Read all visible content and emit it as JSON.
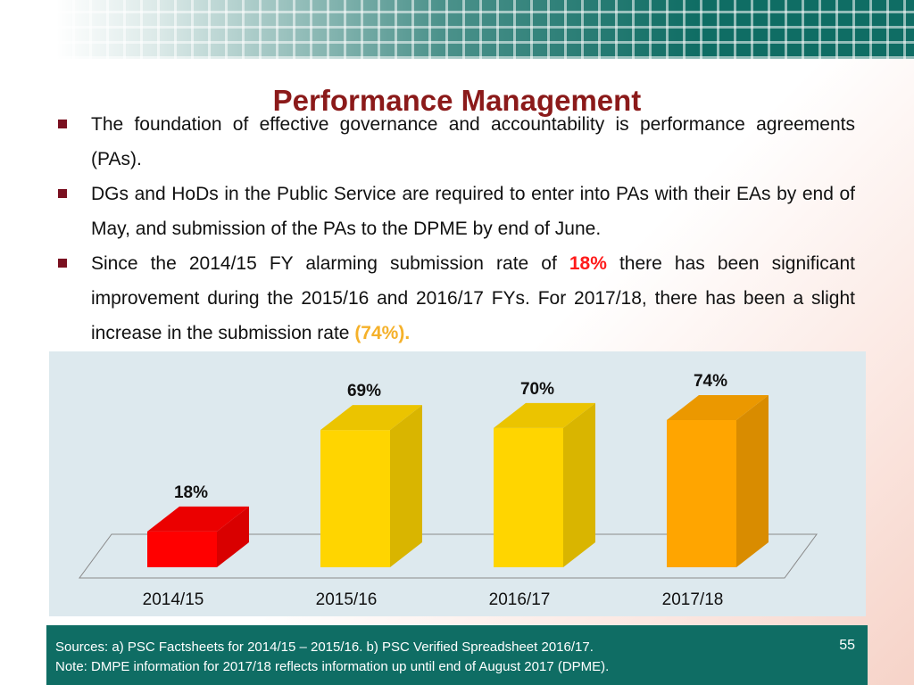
{
  "slide": {
    "title": "Performance Management",
    "bullets": [
      {
        "segments": [
          {
            "text": "The foundation of effective governance and accountability is performance agreements (PAs).",
            "style": ""
          }
        ]
      },
      {
        "segments": [
          {
            "text": "DGs and HoDs in the Public Service are required to enter into PAs with their EAs by end of May, and submission of the PAs to the DPME by end of June.",
            "style": ""
          }
        ]
      },
      {
        "segments": [
          {
            "text": "Since the 2014/15 FY alarming submission rate of ",
            "style": ""
          },
          {
            "text": "18%",
            "style": "hl-red"
          },
          {
            "text": " there has been significant improvement during the 2015/16 and 2016/17 FYs. For 2017/18, there has been a slight increase in the submission rate ",
            "style": ""
          },
          {
            "text": "(74%).",
            "style": "hl-orange"
          }
        ]
      }
    ],
    "footer": {
      "sources": "Sources: a) PSC Factsheets for 2014/15 – 2015/16. b) PSC Verified Spreadsheet 2016/17.",
      "note": "Note: DMPE information for 2017/18 reflects information up until end of  August 2017 (DPME).",
      "slide_number": "55"
    }
  },
  "chart_data": {
    "type": "bar",
    "categories": [
      "2014/15",
      "2015/16",
      "2016/17",
      "2017/18"
    ],
    "values": [
      18,
      69,
      70,
      74
    ],
    "data_labels": [
      "18%",
      "69%",
      "70%",
      "74%"
    ],
    "bar_colors": [
      "#ff0000",
      "#ffd500",
      "#ffd500",
      "#ffa500"
    ],
    "ylim": [
      0,
      100
    ],
    "grid": false,
    "style": "3d-column"
  }
}
